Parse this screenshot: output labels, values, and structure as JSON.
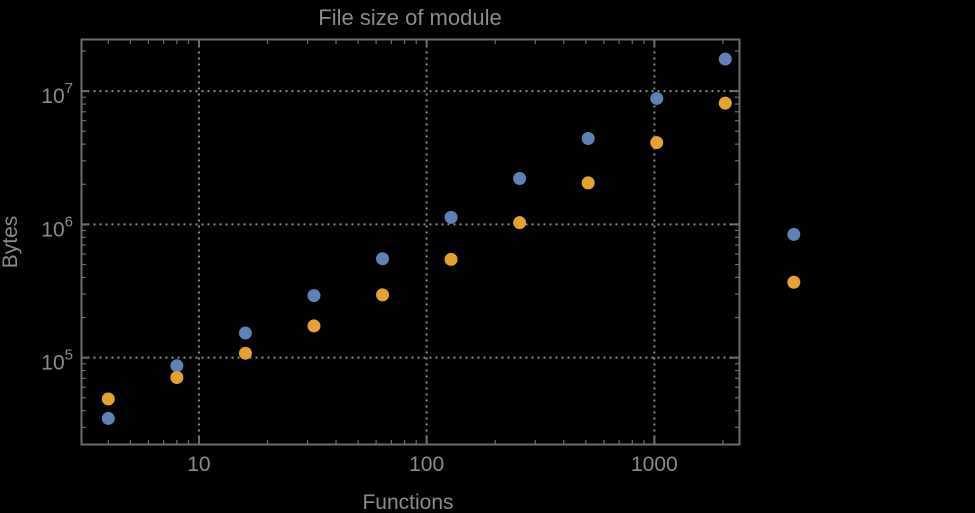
{
  "page": {
    "background_color": "#000000"
  },
  "chart_data": {
    "type": "scatter",
    "title": "File size of module",
    "xlabel": "Functions",
    "ylabel": "Bytes",
    "xscale": "log",
    "yscale": "log",
    "xlim": [
      3.05,
      2365
    ],
    "ylim": [
      22300,
      24400000
    ],
    "grid": "dotted lines at decade ticks",
    "legend": "none",
    "x_major_ticks": [
      {
        "value": 10,
        "label": "10"
      },
      {
        "value": 100,
        "label": "100"
      },
      {
        "value": 1000,
        "label": "1000"
      }
    ],
    "y_major_ticks": [
      {
        "value": 100000,
        "base": "10",
        "exponent": "5"
      },
      {
        "value": 1000000,
        "base": "10",
        "exponent": "6"
      },
      {
        "value": 10000000,
        "base": "10",
        "exponent": "7"
      }
    ],
    "x": [
      4,
      8,
      16,
      32,
      64,
      128,
      256,
      512,
      1024,
      2048,
      4096
    ],
    "series": [
      {
        "name": "series-blue",
        "color": "#5E82B8",
        "values": [
          35000,
          87000,
          153000,
          292000,
          552000,
          1130000,
          2210000,
          4410000,
          8810000,
          17400000,
          841000
        ]
      },
      {
        "name": "series-orange",
        "color": "#E5A22E",
        "values": [
          49000,
          71000,
          108000,
          173000,
          296000,
          546000,
          1030000,
          2050000,
          4110000,
          8130000,
          368000
        ]
      }
    ],
    "style": {
      "text_color": "#8b8b8b",
      "frame_color": "#6d6d6d",
      "grid_color": "#8d8d8d",
      "point_radius": 6.5
    }
  }
}
